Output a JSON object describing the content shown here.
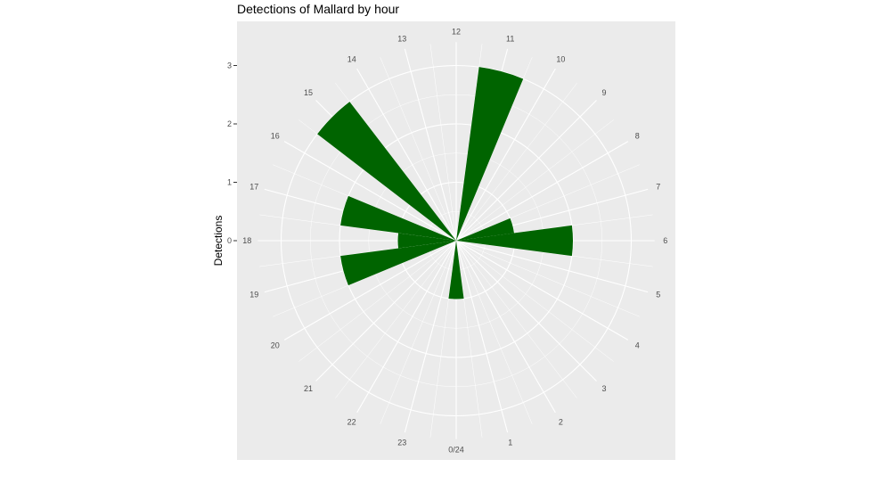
{
  "chart_data": {
    "type": "bar",
    "coord": "polar",
    "title": "Detections of Mallard by hour",
    "ylabel": "Detections",
    "xlabel": "",
    "categories": [
      "0/24",
      "1",
      "2",
      "3",
      "4",
      "5",
      "6",
      "7",
      "8",
      "9",
      "10",
      "11",
      "12",
      "13",
      "14",
      "15",
      "16",
      "17",
      "18",
      "19",
      "20",
      "21",
      "22",
      "23"
    ],
    "values": [
      1,
      0,
      0,
      0,
      0,
      0,
      2,
      1,
      0,
      0,
      0,
      3,
      0,
      0,
      0,
      3,
      0,
      2,
      1,
      2,
      0,
      0,
      0,
      0
    ],
    "y_ticks": [
      "0",
      "1",
      "2",
      "3"
    ],
    "ylim": [
      0,
      3.4
    ],
    "grid": true,
    "colors": {
      "panel": "#ebebeb",
      "grid": "#ffffff",
      "bar": "#006400",
      "text": "#4d4d4d"
    }
  }
}
